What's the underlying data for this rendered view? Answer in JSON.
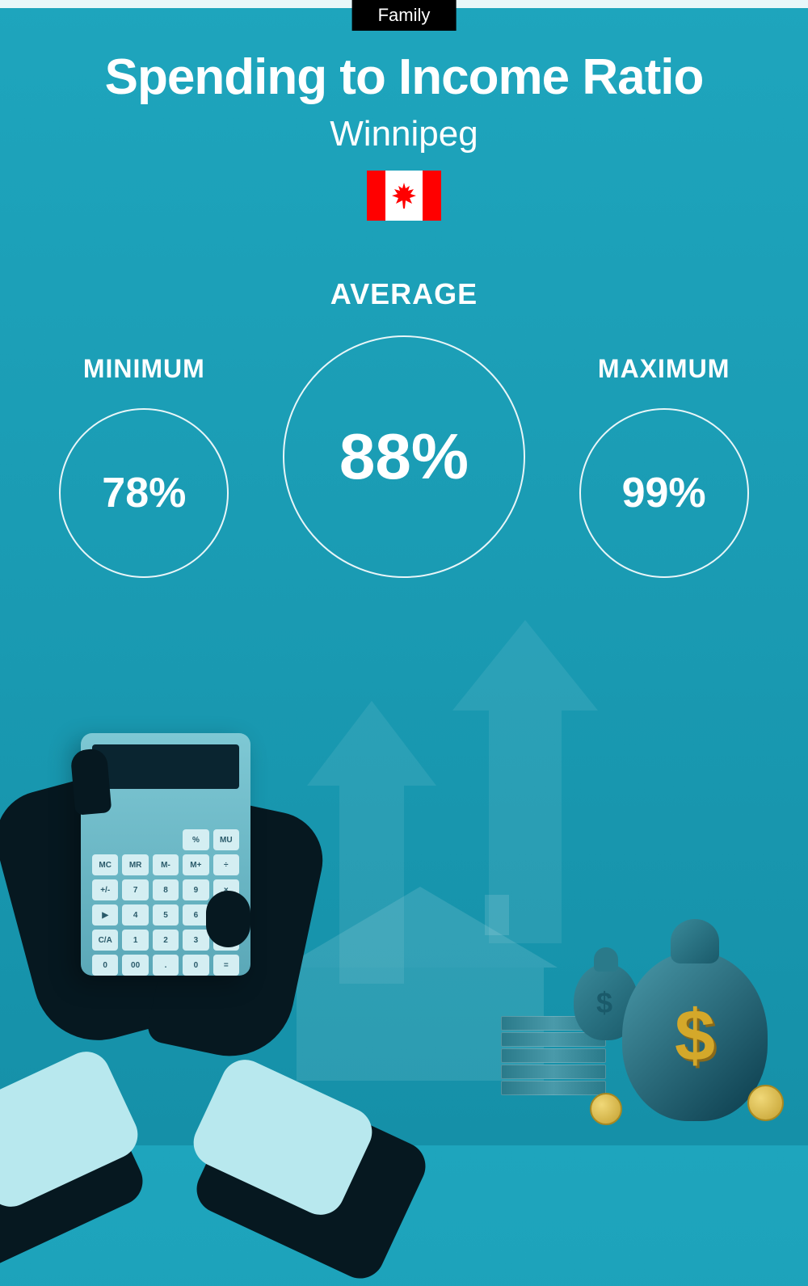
{
  "badge": "Family",
  "title": "Spending to Income Ratio",
  "subtitle": "Winnipeg",
  "flag": {
    "stripe_color": "#ff0000",
    "center_color": "#ffffff",
    "leaf_color": "#ff0000"
  },
  "stats": {
    "minimum": {
      "label": "MINIMUM",
      "value": "78%"
    },
    "average": {
      "label": "AVERAGE",
      "value": "88%"
    },
    "maximum": {
      "label": "MAXIMUM",
      "value": "99%"
    }
  },
  "colors": {
    "background_top": "#1ea5bd",
    "background_bottom": "#1590a8",
    "text": "#ffffff",
    "badge_bg": "#000000",
    "circle_border": "rgba(255,255,255,0.9)",
    "accent_gold": "#d4a82a"
  },
  "calculator_keys": [
    "",
    "",
    "",
    "%",
    "MU",
    "MC",
    "MR",
    "M-",
    "M+",
    "÷",
    "+/-",
    "7",
    "8",
    "9",
    "×",
    "▶",
    "4",
    "5",
    "6",
    "-",
    "C/A",
    "1",
    "2",
    "3",
    "+",
    "0",
    "00",
    ".",
    "0",
    "="
  ]
}
